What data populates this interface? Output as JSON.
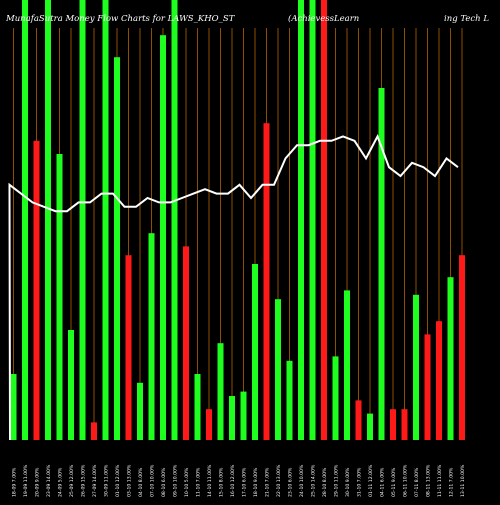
{
  "chart_data": {
    "type": "bar",
    "title_left": "MunafaSutra  Money Flow  Charts for LAWS_KHO_ST",
    "title_mid": "(AchievessLearn",
    "title_right": "ing Tech L",
    "ylim": [
      0,
      100
    ],
    "bars": [
      {
        "label": "18-09 7.00%",
        "value": 15,
        "color": "green"
      },
      {
        "label": "19-09 11.00%",
        "value": 100,
        "color": "green"
      },
      {
        "label": "20-09 9.00%",
        "value": 68,
        "color": "red"
      },
      {
        "label": "23-09 14.00%",
        "value": 100,
        "color": "green"
      },
      {
        "label": "24-09 5.00%",
        "value": 65,
        "color": "green"
      },
      {
        "label": "25-09 12.00%",
        "value": 25,
        "color": "green"
      },
      {
        "label": "26-09 15.00%",
        "value": 100,
        "color": "green"
      },
      {
        "label": "27-09 14.00%",
        "value": 4,
        "color": "red"
      },
      {
        "label": "30-09 11.00%",
        "value": 100,
        "color": "green"
      },
      {
        "label": "01-10 12.00%",
        "value": 87,
        "color": "green"
      },
      {
        "label": "03-10 13.00%",
        "value": 42,
        "color": "red"
      },
      {
        "label": "04-10 8.00%",
        "value": 13,
        "color": "green"
      },
      {
        "label": "07-10 10.00%",
        "value": 47,
        "color": "green"
      },
      {
        "label": "08-10 6.00%",
        "value": 92,
        "color": "green"
      },
      {
        "label": "09-10 10.00%",
        "value": 100,
        "color": "green"
      },
      {
        "label": "10-10 5.00%",
        "value": 44,
        "color": "red"
      },
      {
        "label": "11-10 7.00%",
        "value": 15,
        "color": "green"
      },
      {
        "label": "14-10 11.00%",
        "value": 7,
        "color": "red"
      },
      {
        "label": "15-10 8.00%",
        "value": 22,
        "color": "green"
      },
      {
        "label": "16-10 12.00%",
        "value": 10,
        "color": "green"
      },
      {
        "label": "17-10 6.00%",
        "value": 11,
        "color": "green"
      },
      {
        "label": "18-10 9.00%",
        "value": 40,
        "color": "green"
      },
      {
        "label": "21-10 7.00%",
        "value": 72,
        "color": "red"
      },
      {
        "label": "22-10 13.00%",
        "value": 32,
        "color": "green"
      },
      {
        "label": "23-10 6.00%",
        "value": 18,
        "color": "green"
      },
      {
        "label": "24-10 10.00%",
        "value": 100,
        "color": "green"
      },
      {
        "label": "25-10 14.00%",
        "value": 100,
        "color": "green"
      },
      {
        "label": "28-10 8.00%",
        "value": 100,
        "color": "red"
      },
      {
        "label": "29-10 11.00%",
        "value": 19,
        "color": "green"
      },
      {
        "label": "30-10 9.00%",
        "value": 34,
        "color": "green"
      },
      {
        "label": "31-10 7.00%",
        "value": 9,
        "color": "red"
      },
      {
        "label": "01-11 12.00%",
        "value": 6,
        "color": "green"
      },
      {
        "label": "04-11 6.00%",
        "value": 80,
        "color": "green"
      },
      {
        "label": "05-11 9.00%",
        "value": 7,
        "color": "red"
      },
      {
        "label": "06-11 10.00%",
        "value": 7,
        "color": "red"
      },
      {
        "label": "07-11 8.00%",
        "value": 33,
        "color": "green"
      },
      {
        "label": "08-11 13.00%",
        "value": 24,
        "color": "red"
      },
      {
        "label": "11-11 11.00%",
        "value": 27,
        "color": "red"
      },
      {
        "label": "12-11 7.00%",
        "value": 37,
        "color": "green"
      },
      {
        "label": "13-11 10.00%",
        "value": 42,
        "color": "red"
      }
    ],
    "line": [
      58,
      56,
      54,
      53,
      52,
      52,
      54,
      54,
      56,
      56,
      53,
      53,
      55,
      54,
      54,
      55,
      56,
      57,
      56,
      56,
      58,
      55,
      58,
      58,
      64,
      67,
      67,
      68,
      68,
      69,
      68,
      64,
      69,
      62,
      60,
      63,
      62,
      60,
      64,
      62
    ],
    "colors": {
      "background": "#000000",
      "green": "#1fff1f",
      "red": "#ff1a1a",
      "grid": "#b36200",
      "line": "#ffffff",
      "text": "#ffffff"
    }
  }
}
